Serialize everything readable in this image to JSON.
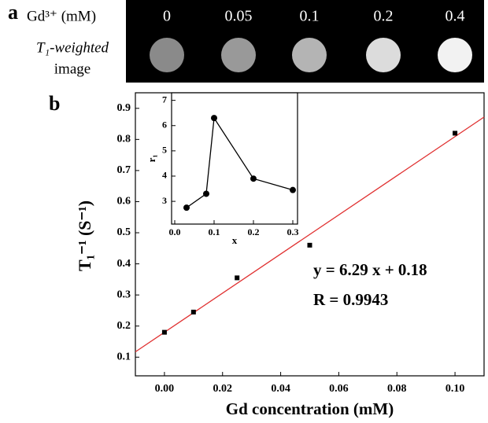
{
  "image_panel": {
    "label": "a",
    "row_title": "Gd³⁺ (mM)",
    "caption_line1": "T₁-weighted",
    "caption_line2": "image",
    "concentrations": [
      "0",
      "0.05",
      "0.1",
      "0.2",
      "0.4"
    ],
    "colors": [
      "#8a8a8a",
      "#999999",
      "#b4b4b4",
      "#dcdcdc",
      "#f2f2f2"
    ]
  },
  "chart_data": [
    {
      "type": "scatter",
      "panel_label": "b",
      "x_label": "Gd concentration (mM)",
      "y_label": "T₁⁻¹ (S⁻¹)",
      "x": [
        0,
        0.01,
        0.025,
        0.05,
        0.1
      ],
      "y": [
        0.18,
        0.245,
        0.355,
        0.46,
        0.82
      ],
      "color": "#000000",
      "fit": {
        "slope": 6.29,
        "intercept": 0.18,
        "color": "#e03030"
      },
      "annotations": [
        "y = 6.29 x + 0.18",
        "R = 0.9943"
      ],
      "xlim": [
        -0.01,
        0.11
      ],
      "ylim": [
        0.04,
        0.95
      ],
      "xticks": [
        {
          "value": 0,
          "label": "0.00"
        },
        0.02,
        0.04,
        0.06,
        0.08,
        {
          "value": 0.1,
          "label": "0.10"
        }
      ],
      "yticks": [
        0.1,
        0.2,
        0.3,
        0.4,
        0.5,
        0.6,
        0.7,
        0.8,
        0.9
      ]
    },
    {
      "type": "line",
      "x_label": "x",
      "y_label": "r₁",
      "x": [
        0.03,
        0.08,
        0.1,
        0.2,
        0.3
      ],
      "y": [
        2.75,
        3.3,
        6.3,
        3.9,
        3.45
      ],
      "color": "#000000",
      "xlim": [
        -0.008,
        0.312
      ],
      "ylim": [
        2.1,
        7.3
      ],
      "xticks": [
        {
          "value": 0,
          "label": "0.0"
        },
        0.1,
        0.2,
        0.3
      ],
      "yticks": [
        3,
        4,
        5,
        6,
        7
      ]
    }
  ]
}
